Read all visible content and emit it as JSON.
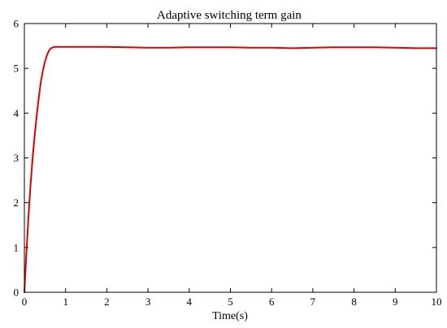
{
  "chart_data": {
    "type": "line",
    "title": "Adaptive switching term gain",
    "xlabel": "Time(s)",
    "ylabel": "",
    "xlim": [
      0,
      10
    ],
    "ylim": [
      0,
      6
    ],
    "xticks": [
      0,
      1,
      2,
      3,
      4,
      5,
      6,
      7,
      8,
      9,
      10
    ],
    "yticks": [
      0,
      1,
      2,
      3,
      4,
      5,
      6
    ],
    "grid": false,
    "legend": "none",
    "series": [
      {
        "color": "#e00000",
        "x": [
          0,
          0.05,
          0.1,
          0.15,
          0.2,
          0.25,
          0.3,
          0.35,
          0.4,
          0.45,
          0.5,
          0.55,
          0.6,
          0.65,
          0.7,
          0.75,
          0.8,
          1,
          1.5,
          2,
          2.5,
          3,
          3.5,
          4,
          4.5,
          5,
          5.5,
          6,
          6.5,
          7,
          7.5,
          8,
          8.5,
          9,
          9.5,
          10
        ],
        "y": [
          0,
          0.9,
          1.7,
          2.4,
          3.0,
          3.5,
          3.95,
          4.35,
          4.7,
          4.95,
          5.15,
          5.3,
          5.4,
          5.45,
          5.47,
          5.48,
          5.48,
          5.48,
          5.48,
          5.48,
          5.47,
          5.46,
          5.46,
          5.47,
          5.47,
          5.47,
          5.46,
          5.46,
          5.45,
          5.46,
          5.47,
          5.47,
          5.47,
          5.46,
          5.45,
          5.45
        ]
      }
    ]
  }
}
